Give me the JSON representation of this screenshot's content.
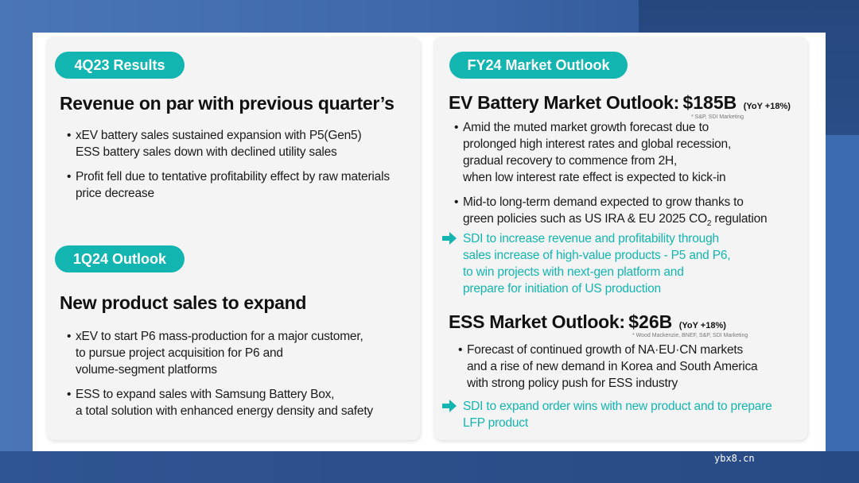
{
  "left": {
    "results": {
      "pill": "4Q23 Results",
      "heading": "Revenue on par with previous quarter’s",
      "bullets": [
        [
          "xEV battery sales sustained expansion with P5(Gen5)",
          "ESS battery sales down with declined utility sales"
        ],
        [
          "Profit fell due to tentative profitability effect by raw materials",
          "price decrease"
        ]
      ]
    },
    "outlook": {
      "pill": "1Q24 Outlook",
      "heading": "New product sales to expand",
      "bullets": [
        [
          "xEV to start P6 mass-production for a major customer,",
          "to pursue project acquisition for P6 and",
          "volume-segment platforms"
        ],
        [
          "ESS to expand sales with Samsung Battery Box,",
          "a total solution with enhanced energy density and safety"
        ]
      ]
    }
  },
  "right": {
    "pill": "FY24 Market Outlook",
    "ev": {
      "title": "EV Battery Market Outlook:",
      "amount": "$185B",
      "yoy": "(YoY +18%)",
      "source": "* S&P, SDI Marketing",
      "bullet1": [
        "Amid the muted market growth forecast due to",
        "prolonged high interest rates and global recession,",
        "gradual recovery to commence from 2H,",
        "when low interest rate effect is expected to kick-in"
      ],
      "bullet2_line1": "Mid-to long-term demand expected to grow thanks to",
      "bullet2_line2_pre": "green policies such as US IRA & EU 2025 CO",
      "bullet2_sub": "2",
      "bullet2_line2_post": " regulation",
      "callout": [
        "SDI to increase revenue and profitability through",
        "sales increase of high-value products - P5 and P6,",
        "to win projects with next-gen platform and",
        "prepare for initiation of US production"
      ]
    },
    "ess": {
      "title": "ESS Market Outlook:",
      "amount": "$26B",
      "yoy": "(YoY +18%)",
      "source": "* Wood Mackenzie, BNEF, S&P, SDI Marketing",
      "bullet1": [
        "Forecast of continued growth of NA·EU·CN markets",
        "and a rise of new demand in Korea and South America",
        "with strong policy push for ESS industry"
      ],
      "callout": [
        "SDI to expand order wins with new product and to prepare",
        "LFP product"
      ]
    }
  },
  "watermark": "ybx8.cn",
  "colors": {
    "accent": "#13b5b1",
    "card": "#f4f4f4",
    "background": "#3c66a8"
  }
}
